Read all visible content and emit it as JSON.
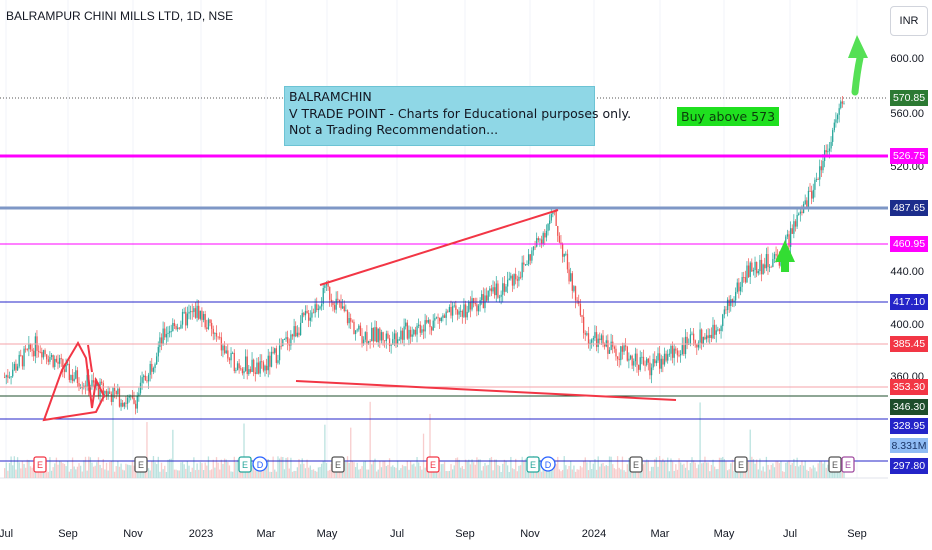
{
  "header": {
    "title": "BALRAMPUR CHINI MILLS LTD, 1D, NSE",
    "currency": "INR"
  },
  "price_axis": {
    "ticks": [
      "600.00",
      "560.00",
      "520.00",
      "440.00",
      "400.00",
      "360.00"
    ]
  },
  "price_labels": {
    "last": {
      "text": "570.85",
      "color": "#2c7a33"
    },
    "l1": {
      "text": "526.75",
      "color": "#ff00ff"
    },
    "l2": {
      "text": "487.65",
      "color": "#1c2d8c"
    },
    "l3": {
      "text": "460.95",
      "color": "#ff00ff"
    },
    "l4": {
      "text": "417.10",
      "color": "#2424c8"
    },
    "l5": {
      "text": "385.45",
      "color": "#f23645"
    },
    "l6": {
      "text": "353.30",
      "color": "#f23645"
    },
    "l7": {
      "text": "346.30",
      "color": "#1e4d2b"
    },
    "l8": {
      "text": "328.95",
      "color": "#2424c8"
    },
    "l9": {
      "text": "297.80",
      "color": "#2424c8"
    }
  },
  "volume_label": "8.331M",
  "time_axis": [
    "Jul",
    "Sep",
    "Nov",
    "2023",
    "Mar",
    "May",
    "Jul",
    "Sep",
    "Nov",
    "2024",
    "Mar",
    "May",
    "Jul",
    "Sep"
  ],
  "note": {
    "line1": "BALRAMCHIN",
    "line2": "V TRADE POINT - Charts for Educational purposes only.",
    "line3": "Not a Trading Recommendation..."
  },
  "buy_label": "Buy above 573",
  "event_markers": [
    "E",
    "E",
    "E",
    "D",
    "E",
    "E",
    "E",
    "D",
    "E",
    "E",
    "E",
    "E"
  ],
  "colors": {
    "up": "#26a69a",
    "down": "#ef5350",
    "magenta": "#ff00ff",
    "navy": "#1c2d8c",
    "blue": "#2424c8",
    "green_arrow": "#33dd33"
  },
  "chart_data": {
    "type": "candlestick",
    "y_axis_range": [
      290,
      620
    ],
    "levels": [
      570.85,
      526.75,
      487.65,
      460.95,
      417.1,
      385.45,
      353.3,
      346.3,
      328.95,
      297.8
    ],
    "close_path": [
      [
        "Jul",
        360
      ],
      [
        "Aug",
        385
      ],
      [
        "Sep",
        362
      ],
      [
        "Oct",
        350
      ],
      [
        "Nov",
        340
      ],
      [
        "Dec",
        395
      ],
      [
        "2023",
        410
      ],
      [
        "Feb",
        372
      ],
      [
        "Mar",
        365
      ],
      [
        "Apr",
        395
      ],
      [
        "May",
        425
      ],
      [
        "Jun",
        392
      ],
      [
        "Jul",
        390
      ],
      [
        "Aug",
        400
      ],
      [
        "Sep",
        408
      ],
      [
        "Oct",
        420
      ],
      [
        "Nov",
        440
      ],
      [
        "Dec",
        482
      ],
      [
        "2024",
        390
      ],
      [
        "Feb",
        380
      ],
      [
        "Mar",
        368
      ],
      [
        "Apr",
        383
      ],
      [
        "May",
        395
      ],
      [
        "Jun",
        440
      ],
      [
        "Jul",
        450
      ],
      [
        "Aug",
        500
      ],
      [
        "Sep",
        570
      ]
    ]
  }
}
